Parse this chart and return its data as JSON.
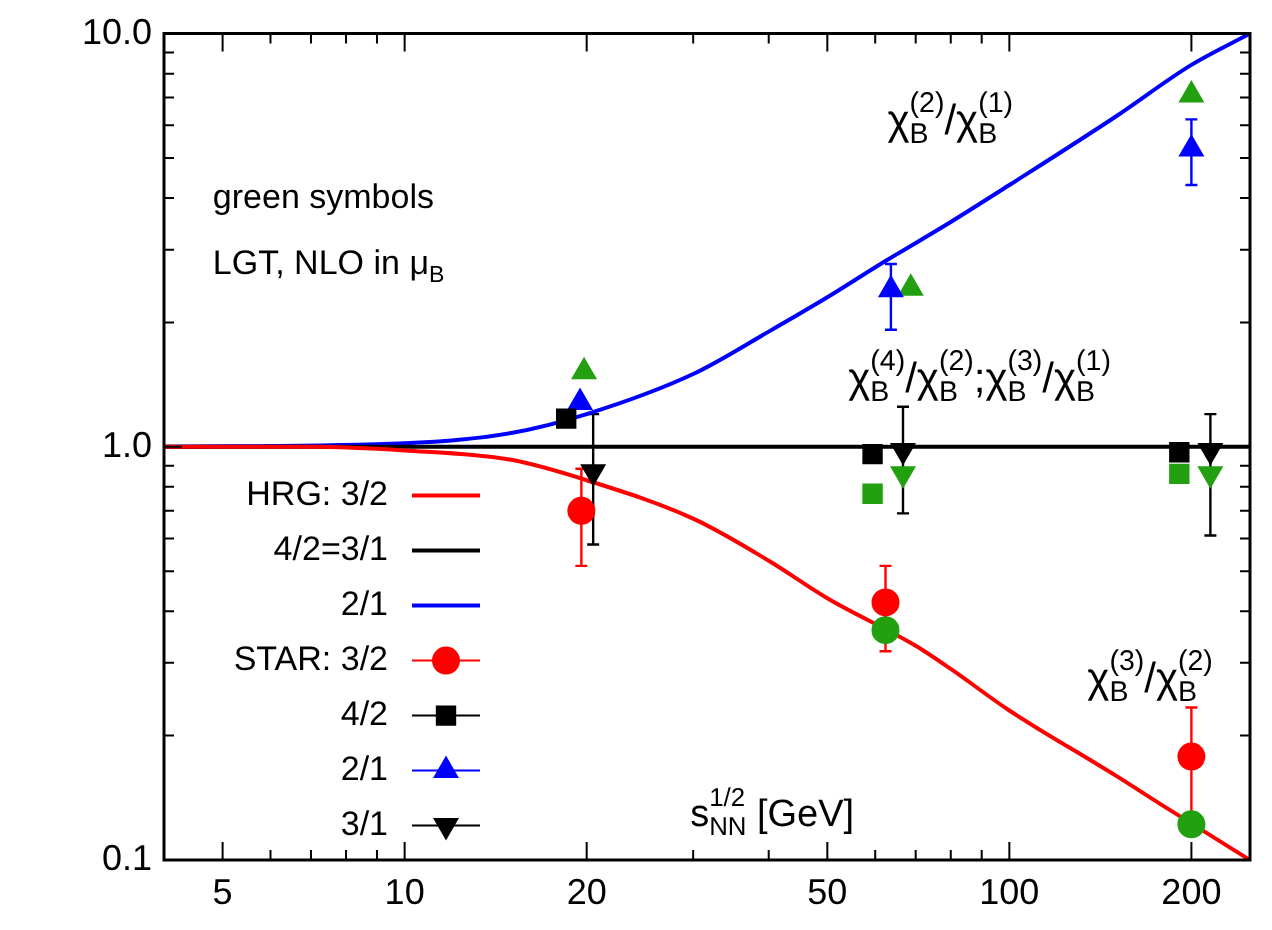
{
  "chart_data": {
    "type": "scatter",
    "xlabel": "s$_{NN}$$^{1/2}$ [GeV]",
    "log": "xy",
    "legend": "bottom left",
    "grid": false,
    "xlim": [
      4,
      250
    ],
    "ylim": [
      0.1,
      10
    ],
    "xticks": [
      {
        "value": 4,
        "label": null
      },
      {
        "value": 5,
        "label": "5"
      },
      {
        "value": 6,
        "label": null
      },
      {
        "value": 7,
        "label": null
      },
      {
        "value": 8,
        "label": null
      },
      {
        "value": 9,
        "label": null
      },
      {
        "value": 10,
        "label": "10"
      },
      {
        "value": 20,
        "label": "20"
      },
      {
        "value": 30,
        "label": null
      },
      {
        "value": 40,
        "label": null
      },
      {
        "value": 50,
        "label": "50"
      },
      {
        "value": 60,
        "label": null
      },
      {
        "value": 70,
        "label": null
      },
      {
        "value": 80,
        "label": null
      },
      {
        "value": 90,
        "label": null
      },
      {
        "value": 100,
        "label": "100"
      },
      {
        "value": 200,
        "label": "200"
      }
    ],
    "yticks": [
      {
        "value": 0.1,
        "label": "0.1"
      },
      {
        "value": 0.2,
        "label": null
      },
      {
        "value": 0.3,
        "label": null
      },
      {
        "value": 0.4,
        "label": null
      },
      {
        "value": 0.5,
        "label": null
      },
      {
        "value": 0.6,
        "label": null
      },
      {
        "value": 0.7,
        "label": null
      },
      {
        "value": 0.8,
        "label": null
      },
      {
        "value": 0.9,
        "label": null
      },
      {
        "value": 1,
        "label": "1.0"
      },
      {
        "value": 2,
        "label": null
      },
      {
        "value": 3,
        "label": null
      },
      {
        "value": 4,
        "label": null
      },
      {
        "value": 5,
        "label": null
      },
      {
        "value": 6,
        "label": null
      },
      {
        "value": 7,
        "label": null
      },
      {
        "value": 8,
        "label": null
      },
      {
        "value": 9,
        "label": null
      },
      {
        "value": 10,
        "label": "10.0"
      }
    ],
    "annotations": [
      "green symbols",
      "LGT, NLO in μ$_{B}$",
      "χ$_{B}$$^{(2)}$/χ$_{B}$$^{(1)}$",
      "χ$_{B}$$^{(4)}$/χ$_{B}$$^{(2)}$;χ$_{B}$$^{(3)}$/χ$_{B}$$^{(1)}$",
      "χ$_{B}$$^{(3)}$/χ$_{B}$$^{(2)}$"
    ],
    "series": [
      {
        "name": "HRG: 3/2",
        "type": "line",
        "color": "#ff0000",
        "marker": "none",
        "x": [
          4,
          7,
          10,
          15,
          20,
          30,
          40,
          50,
          70,
          80,
          100,
          150,
          180,
          250
        ],
        "values": [
          1,
          1,
          0.98,
          0.93,
          0.83,
          0.67,
          0.53,
          0.43,
          0.33,
          0.29,
          0.23,
          0.16,
          0.135,
          0.1
        ]
      },
      {
        "name": "4/2=3/1",
        "type": "line",
        "color": "#000000",
        "marker": "none",
        "x": [
          4,
          250
        ],
        "values": [
          1,
          1
        ]
      },
      {
        "name": "2/1",
        "type": "line",
        "color": "#0000ff",
        "marker": "none",
        "x": [
          4,
          10,
          15,
          20,
          30,
          40,
          50,
          62,
          80,
          100,
          150,
          200,
          250
        ],
        "values": [
          1,
          1.02,
          1.08,
          1.2,
          1.5,
          1.9,
          2.3,
          2.8,
          3.5,
          4.3,
          6.3,
          8.4,
          10
        ]
      },
      {
        "name": "STAR: 3/2",
        "color": "#ff0000",
        "marker": "circle",
        "x": [
          19.6,
          62.4,
          200
        ],
        "values": [
          0.7,
          0.42,
          0.178
        ],
        "errors": [
          [
            0.515,
            0.885
          ],
          [
            0.32,
            0.515
          ],
          [
            0.13,
            0.234
          ]
        ]
      },
      {
        "name": "4/2",
        "color": "#000000",
        "marker": "square",
        "x": [
          18.5,
          59.4,
          191
        ],
        "values": [
          1.17,
          0.96,
          0.97
        ]
      },
      {
        "name": "2/1",
        "color": "#0000ff",
        "marker": "triangle",
        "x": [
          19.5,
          63.7,
          200
        ],
        "values": [
          1.28,
          2.4,
          5.26
        ],
        "errors": [
          null,
          [
            1.92,
            2.77
          ],
          [
            4.3,
            6.2
          ]
        ]
      },
      {
        "name": "3/1",
        "color": "#000000",
        "marker": "triangle-down",
        "x": [
          20.5,
          66.7,
          215
        ],
        "values": [
          0.87,
          0.98,
          0.98
        ],
        "errors": [
          [
            0.58,
            1.2
          ],
          [
            0.69,
            1.25
          ],
          [
            0.61,
            1.2
          ]
        ]
      },
      {
        "color": "#22a010",
        "marker": "circle",
        "x": [
          62.4,
          200
        ],
        "values": [
          0.36,
          0.122
        ]
      },
      {
        "color": "#22a010",
        "marker": "square",
        "x": [
          59.4,
          191
        ],
        "values": [
          0.77,
          0.86
        ]
      },
      {
        "color": "#22a010",
        "marker": "triangle",
        "x": [
          19.8,
          68.7,
          200
        ],
        "values": [
          1.52,
          2.42,
          7.1
        ]
      },
      {
        "color": "#22a010",
        "marker": "triangle-down",
        "x": [
          66.7,
          215
        ],
        "values": [
          0.86,
          0.86
        ]
      }
    ]
  }
}
